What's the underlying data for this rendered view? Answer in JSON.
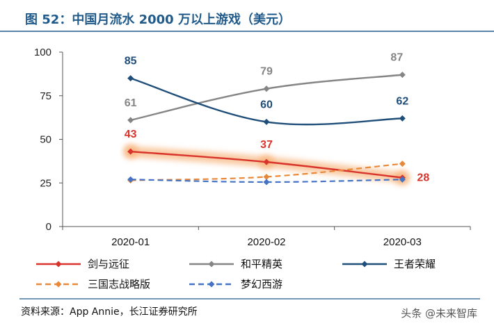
{
  "header": {
    "title": "图 52：中国月流水 2000 万以上游戏（美元）"
  },
  "chart_data": {
    "type": "line",
    "categories": [
      "2020-01",
      "2020-02",
      "2020-03"
    ],
    "ylim": [
      0,
      100
    ],
    "yticks": [
      0,
      25,
      50,
      75,
      100
    ],
    "grid": false,
    "legend_position": "bottom",
    "series": [
      {
        "name": "剑与远征",
        "values": [
          43,
          37,
          28
        ],
        "color": "#d9342b",
        "dashed": false,
        "highlight": true,
        "labels": [
          "43",
          "37",
          "28"
        ]
      },
      {
        "name": "和平精英",
        "values": [
          61,
          79,
          87
        ],
        "color": "#858585",
        "dashed": false,
        "highlight": false,
        "labels": [
          "61",
          "79",
          "87"
        ]
      },
      {
        "name": "王者荣耀",
        "values": [
          85,
          60,
          62
        ],
        "color": "#1f4e79",
        "dashed": false,
        "highlight": false,
        "labels": [
          "85",
          "60",
          "62"
        ]
      },
      {
        "name": "三国志战略版",
        "values": [
          26.5,
          28.5,
          36
        ],
        "color": "#e8893a",
        "dashed": true,
        "highlight": false,
        "labels": []
      },
      {
        "name": "梦幻西游",
        "values": [
          27,
          25.5,
          27
        ],
        "color": "#4472c4",
        "dashed": true,
        "highlight": false,
        "labels": []
      }
    ]
  },
  "footer": {
    "source": "资料来源：App Annie，长江证券研究所",
    "watermark": "头条 @未来智库"
  }
}
